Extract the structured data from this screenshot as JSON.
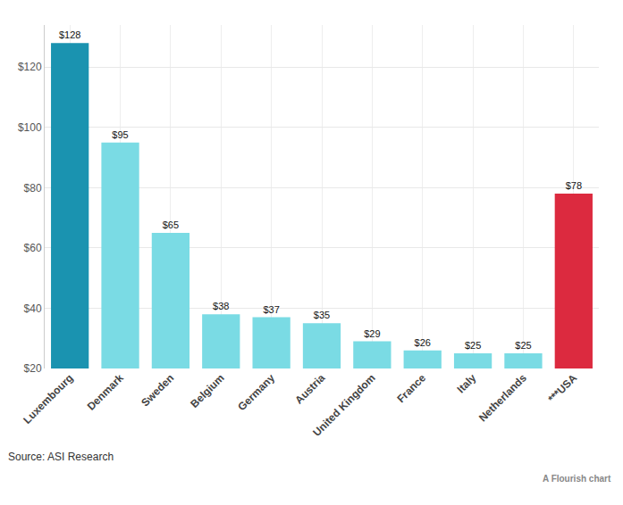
{
  "chart_data": {
    "type": "bar",
    "categories": [
      "Luxembourg",
      "Denmark",
      "Sweden",
      "Belgium",
      "Germany",
      "Austria",
      "United Kingdom",
      "France",
      "Italy",
      "Netherlands",
      "***USA"
    ],
    "values": [
      128,
      95,
      65,
      38,
      37,
      35,
      29,
      26,
      25,
      25,
      78
    ],
    "value_labels": [
      "$128",
      "$95",
      "$65",
      "$38",
      "$37",
      "$35",
      "$29",
      "$26",
      "$25",
      "$25",
      "$78"
    ],
    "colors": [
      "#1a93b0",
      "#7adbe4",
      "#7adbe4",
      "#7adbe4",
      "#7adbe4",
      "#7adbe4",
      "#7adbe4",
      "#7adbe4",
      "#7adbe4",
      "#7adbe4",
      "#dc2a3f"
    ],
    "ylim": [
      20,
      134
    ],
    "yticks": [
      {
        "value": 20,
        "label": "$20"
      },
      {
        "value": 40,
        "label": "$40"
      },
      {
        "value": 60,
        "label": "$60"
      },
      {
        "value": 80,
        "label": "$80"
      },
      {
        "value": 100,
        "label": "$100"
      },
      {
        "value": 120,
        "label": "$120"
      }
    ],
    "grid": true,
    "data_labels": true,
    "annotations": [
      "Source: ASI Research",
      "A Flourish chart"
    ]
  }
}
